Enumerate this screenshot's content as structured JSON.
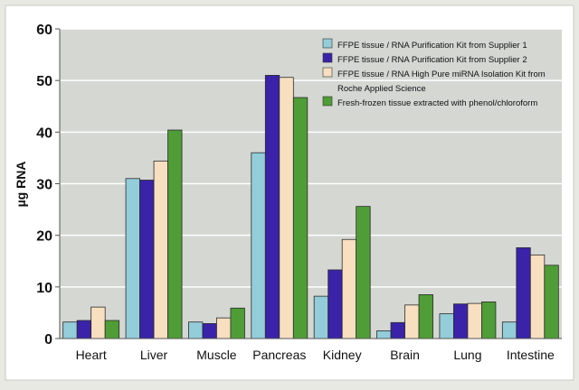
{
  "chart_data": {
    "type": "bar",
    "title": "",
    "xlabel": "",
    "ylabel": "µg RNA",
    "ylim": [
      0,
      60
    ],
    "yticks": [
      0,
      10,
      20,
      30,
      40,
      50,
      60
    ],
    "grid": true,
    "legend_position": "top-right",
    "categories": [
      "Heart",
      "Liver",
      "Muscle",
      "Pancreas",
      "Kidney",
      "Brain",
      "Lung",
      "Intestine"
    ],
    "series": [
      {
        "name": "FFPE tissue / RNA Purification Kit from Supplier 1",
        "color": "#93cdd9",
        "values": [
          3.2,
          31,
          3.2,
          36,
          8.2,
          1.5,
          4.8,
          3.2
        ]
      },
      {
        "name": "FFPE tissue / RNA Purification Kit from Supplier 2",
        "color": "#3a23a8",
        "values": [
          3.5,
          30.7,
          2.9,
          51,
          13.3,
          3.1,
          6.7,
          17.6
        ]
      },
      {
        "name": "FFPE tissue / RNA High Pure miRNA Isolation Kit from Roche Applied Science",
        "color": "#f8dfc0",
        "values": [
          6.1,
          34.4,
          4,
          50.6,
          19.2,
          6.5,
          6.8,
          16.2
        ]
      },
      {
        "name": "Fresh-frozen tissue extracted with phenol/chloroform",
        "color": "#4f9d36",
        "values": [
          3.5,
          40.4,
          5.9,
          46.7,
          25.6,
          8.5,
          7.1,
          14.2
        ]
      }
    ]
  },
  "legend_lines": [
    [
      "FFPE tissue / RNA Purification Kit from Supplier 1"
    ],
    [
      "FFPE tissue / RNA Purification Kit from Supplier 2"
    ],
    [
      "FFPE tissue / RNA High Pure miRNA Isolation Kit from",
      "Roche Applied Science"
    ],
    [
      "Fresh-frozen tissue extracted with phenol/chloroform"
    ]
  ]
}
